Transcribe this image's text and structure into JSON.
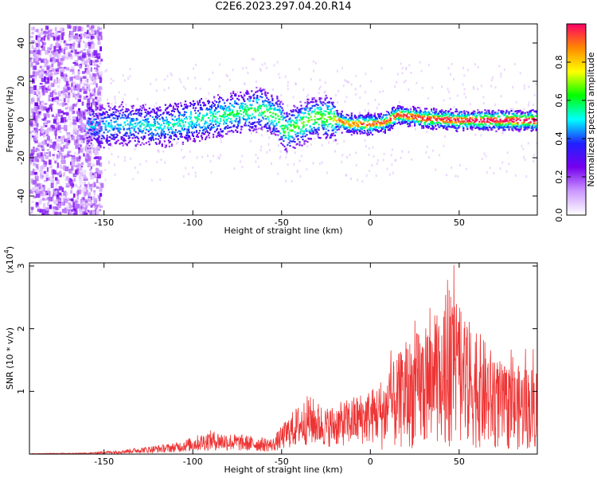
{
  "title": "C2E6.2023.297.04.20.R14",
  "chart_data": [
    {
      "type": "heatmap",
      "panel": "spectrogram",
      "xlabel": "Height of straight line (km)",
      "ylabel": "Frequency (Hz)",
      "xlim": [
        -192,
        94
      ],
      "ylim": [
        -50,
        50
      ],
      "xticks": [
        -150,
        -100,
        -50,
        0,
        50
      ],
      "yticks": [
        -40,
        -20,
        0,
        20,
        40
      ],
      "ridge": [
        {
          "x": -155,
          "y": -3
        },
        {
          "x": -140,
          "y": -2
        },
        {
          "x": -120,
          "y": -3
        },
        {
          "x": -100,
          "y": 0
        },
        {
          "x": -80,
          "y": 3
        },
        {
          "x": -62,
          "y": 6
        },
        {
          "x": -52,
          "y": 1
        },
        {
          "x": -48,
          "y": -6
        },
        {
          "x": -40,
          "y": -2
        },
        {
          "x": -30,
          "y": 2
        },
        {
          "x": -22,
          "y": 1
        },
        {
          "x": -12,
          "y": -2
        },
        {
          "x": 0,
          "y": -2
        },
        {
          "x": 8,
          "y": -1
        },
        {
          "x": 15,
          "y": 3
        },
        {
          "x": 30,
          "y": 1
        },
        {
          "x": 50,
          "y": 0
        },
        {
          "x": 70,
          "y": 0
        },
        {
          "x": 94,
          "y": 0
        }
      ],
      "colorbar": {
        "label": "Normalized spectral amplitude",
        "range": [
          0.0,
          1.0
        ],
        "ticks": [
          "0.0",
          "0.2",
          "0.4",
          "0.6",
          "0.8"
        ],
        "colors": [
          "#ffffff",
          "#cc99ff",
          "#7700ee",
          "#2020ff",
          "#00ffff",
          "#00ff00",
          "#ffff00",
          "#ff8800",
          "#ff0066"
        ]
      }
    },
    {
      "type": "line",
      "panel": "snr",
      "xlabel": "Height of straight line (km)",
      "ylabel": "SNR (10 * v/v)",
      "y_multiplier": "(x10",
      "y_multiplier_exp": "4",
      "xlim": [
        -192,
        94
      ],
      "ylim": [
        0,
        3.05
      ],
      "xticks": [
        -150,
        -100,
        -50,
        0,
        50
      ],
      "yticks": [
        1,
        2,
        3
      ],
      "color": "#ee3333",
      "envelope": [
        {
          "x": -192,
          "y": 0.01
        },
        {
          "x": -160,
          "y": 0.02
        },
        {
          "x": -140,
          "y": 0.07
        },
        {
          "x": -110,
          "y": 0.18
        },
        {
          "x": -90,
          "y": 0.38
        },
        {
          "x": -70,
          "y": 0.3
        },
        {
          "x": -55,
          "y": 0.25
        },
        {
          "x": -45,
          "y": 0.65
        },
        {
          "x": -35,
          "y": 0.95
        },
        {
          "x": -25,
          "y": 0.75
        },
        {
          "x": -15,
          "y": 0.85
        },
        {
          "x": -8,
          "y": 0.95
        },
        {
          "x": 0,
          "y": 1.05
        },
        {
          "x": 8,
          "y": 1.2
        },
        {
          "x": 20,
          "y": 1.7
        },
        {
          "x": 35,
          "y": 2.1
        },
        {
          "x": 48,
          "y": 2.3
        },
        {
          "x": 60,
          "y": 1.9
        },
        {
          "x": 75,
          "y": 1.35
        },
        {
          "x": 94,
          "y": 1.35
        }
      ]
    }
  ]
}
